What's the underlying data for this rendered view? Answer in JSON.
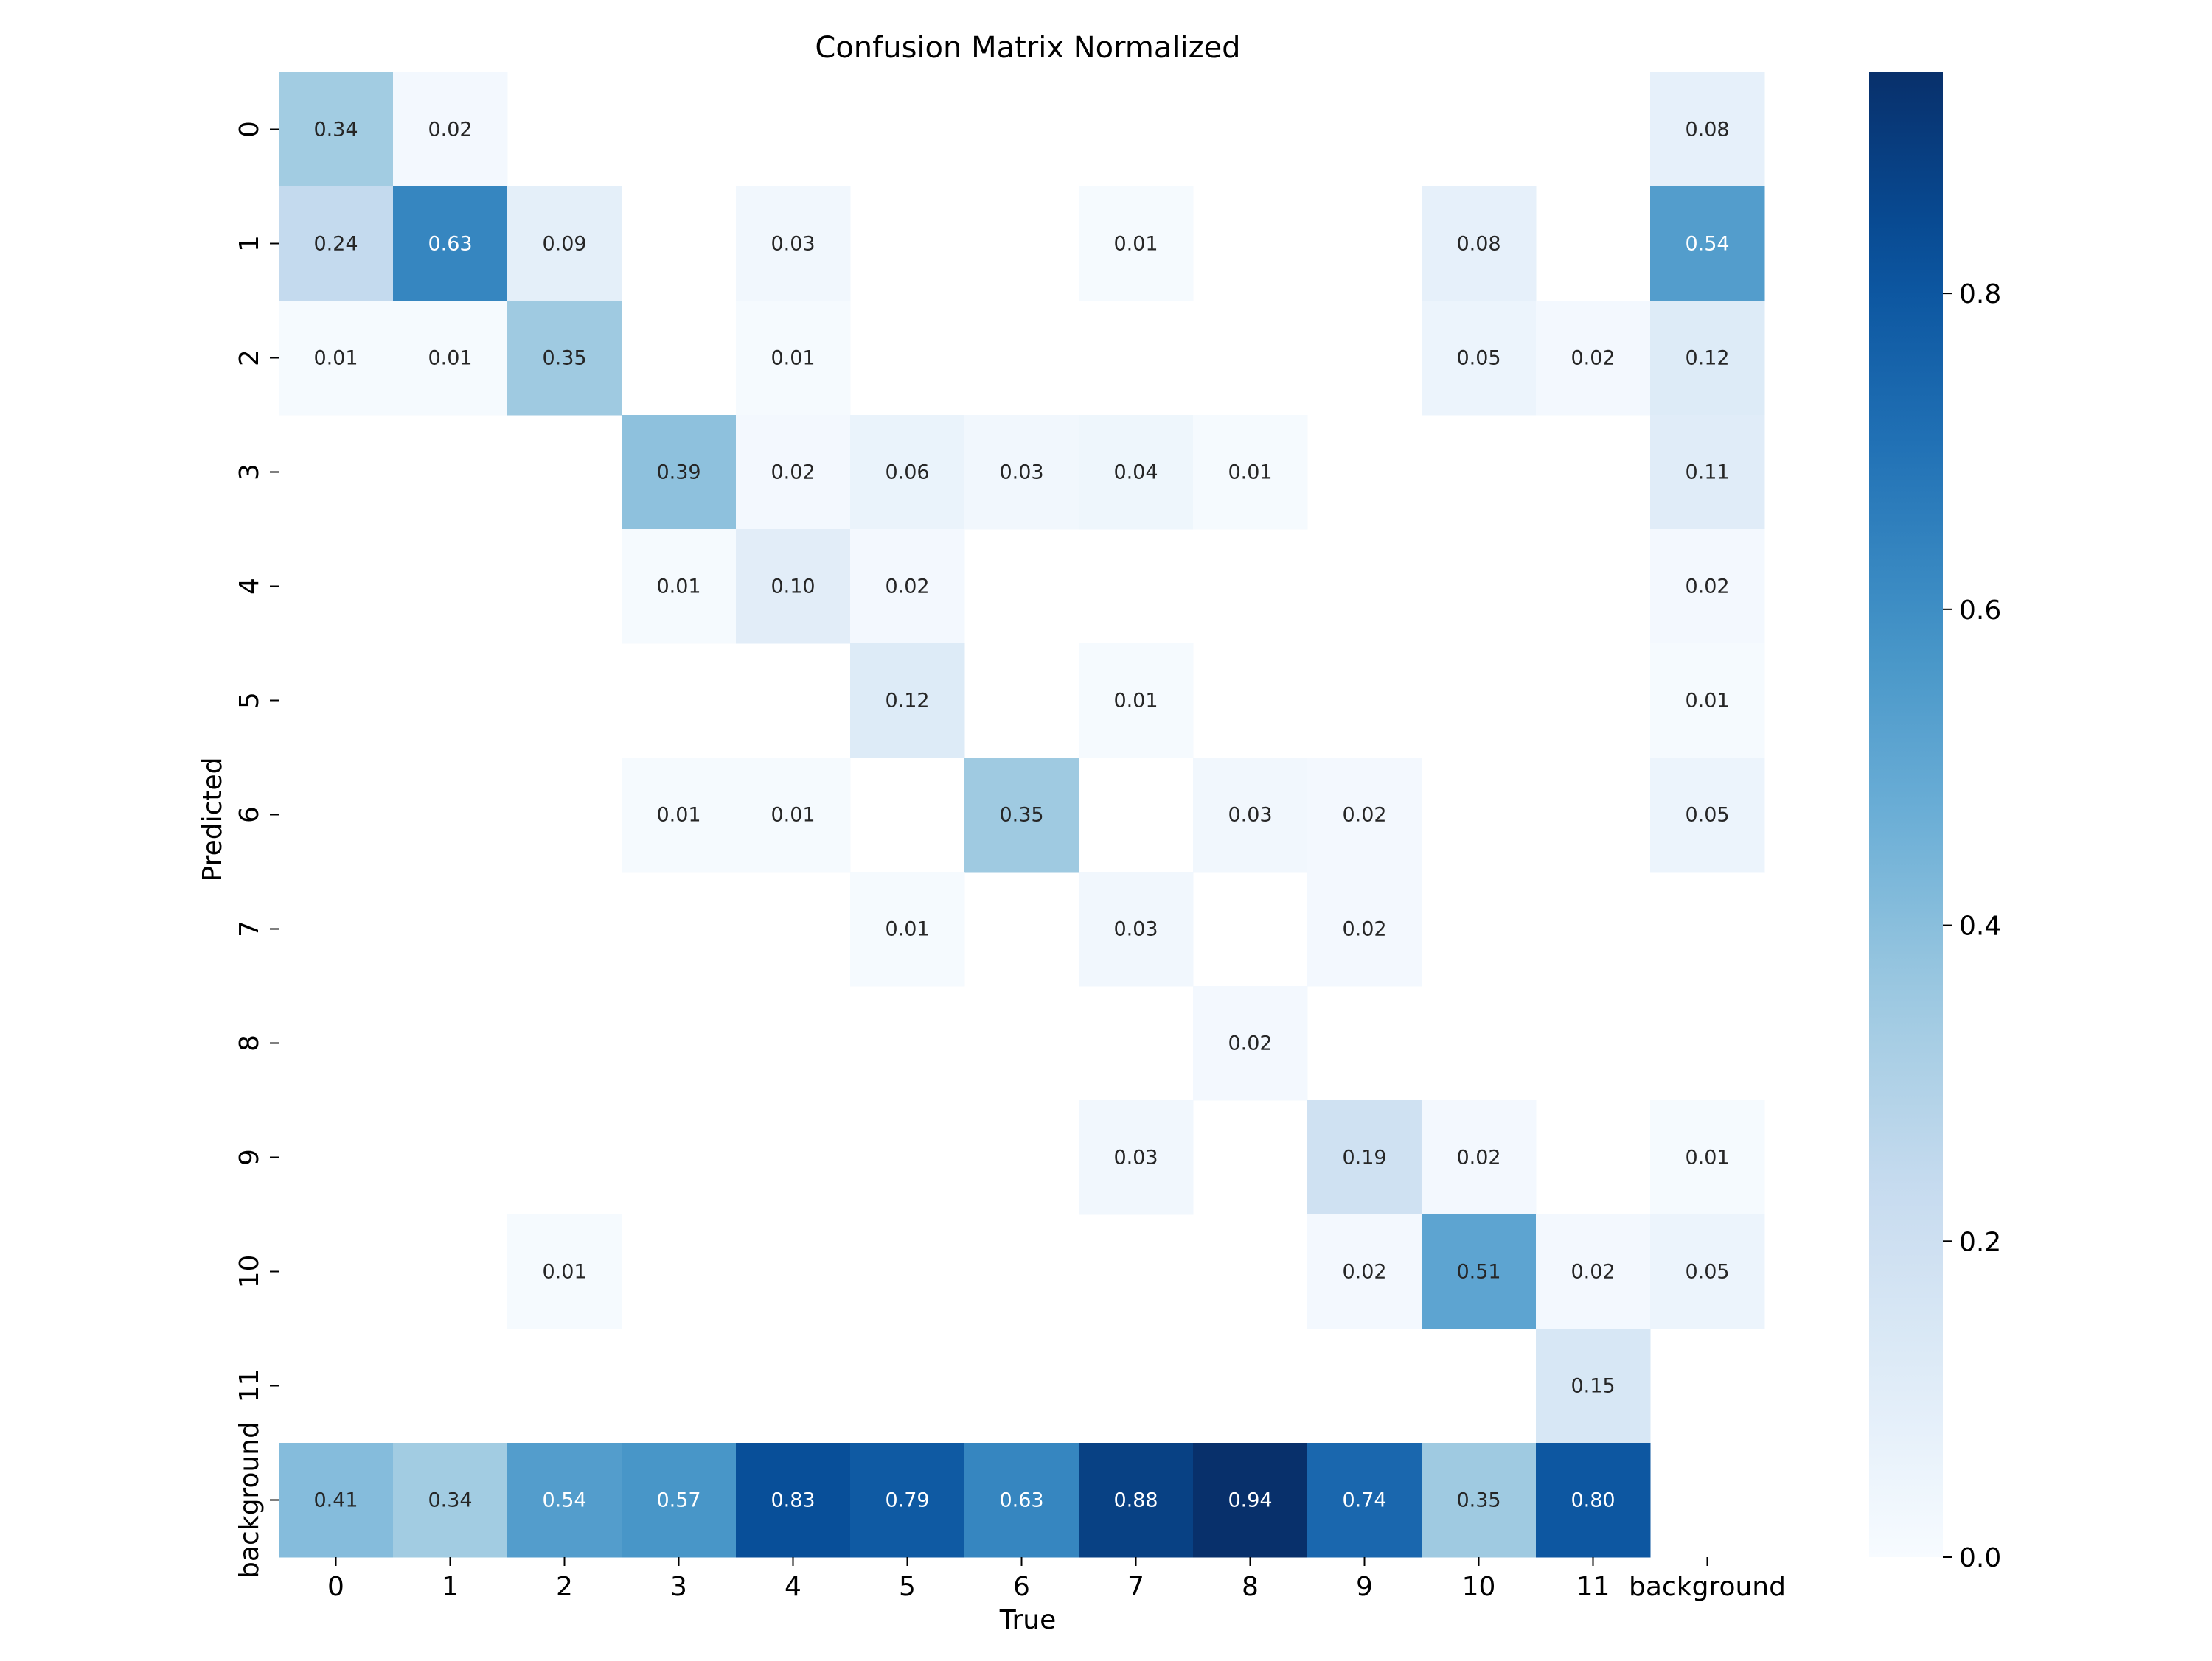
{
  "chart_data": {
    "type": "heatmap",
    "title": "Confusion Matrix Normalized",
    "xlabel": "True",
    "ylabel": "Predicted",
    "x_categories": [
      "0",
      "1",
      "2",
      "3",
      "4",
      "5",
      "6",
      "7",
      "8",
      "9",
      "10",
      "11",
      "background"
    ],
    "y_categories": [
      "0",
      "1",
      "2",
      "3",
      "4",
      "5",
      "6",
      "7",
      "8",
      "9",
      "10",
      "11",
      "background"
    ],
    "values": [
      [
        0.34,
        0.02,
        null,
        null,
        null,
        null,
        null,
        null,
        null,
        null,
        null,
        null,
        0.08
      ],
      [
        0.24,
        0.63,
        0.09,
        null,
        0.03,
        null,
        null,
        0.01,
        null,
        null,
        0.08,
        null,
        0.54
      ],
      [
        0.01,
        0.01,
        0.35,
        null,
        0.01,
        null,
        null,
        null,
        null,
        null,
        0.05,
        0.02,
        0.12
      ],
      [
        null,
        null,
        null,
        0.39,
        0.02,
        0.06,
        0.03,
        0.04,
        0.01,
        null,
        null,
        null,
        0.11
      ],
      [
        null,
        null,
        null,
        0.01,
        0.1,
        0.02,
        null,
        null,
        null,
        null,
        null,
        null,
        0.02
      ],
      [
        null,
        null,
        null,
        null,
        null,
        0.12,
        null,
        0.01,
        null,
        null,
        null,
        null,
        0.01
      ],
      [
        null,
        null,
        null,
        0.01,
        0.01,
        null,
        0.35,
        null,
        0.03,
        0.02,
        null,
        null,
        0.05
      ],
      [
        null,
        null,
        null,
        null,
        null,
        0.01,
        null,
        0.03,
        null,
        0.02,
        null,
        null,
        null
      ],
      [
        null,
        null,
        null,
        null,
        null,
        null,
        null,
        null,
        0.02,
        null,
        null,
        null,
        null
      ],
      [
        null,
        null,
        null,
        null,
        null,
        null,
        null,
        0.03,
        null,
        0.19,
        0.02,
        null,
        0.01
      ],
      [
        null,
        null,
        0.01,
        null,
        null,
        null,
        null,
        null,
        null,
        0.02,
        0.51,
        0.02,
        0.05
      ],
      [
        null,
        null,
        null,
        null,
        null,
        null,
        null,
        null,
        null,
        null,
        null,
        0.15,
        null
      ],
      [
        0.41,
        0.34,
        0.54,
        0.57,
        0.83,
        0.79,
        0.63,
        0.88,
        0.94,
        0.74,
        0.35,
        0.8,
        null
      ]
    ],
    "colorbar": {
      "range": [
        0,
        0.94
      ],
      "ticks": [
        0.0,
        0.2,
        0.4,
        0.6,
        0.8
      ],
      "tick_labels": [
        "0.0",
        "0.2",
        "0.4",
        "0.6",
        "0.8"
      ],
      "colormap": "Blues"
    },
    "grid": false
  }
}
